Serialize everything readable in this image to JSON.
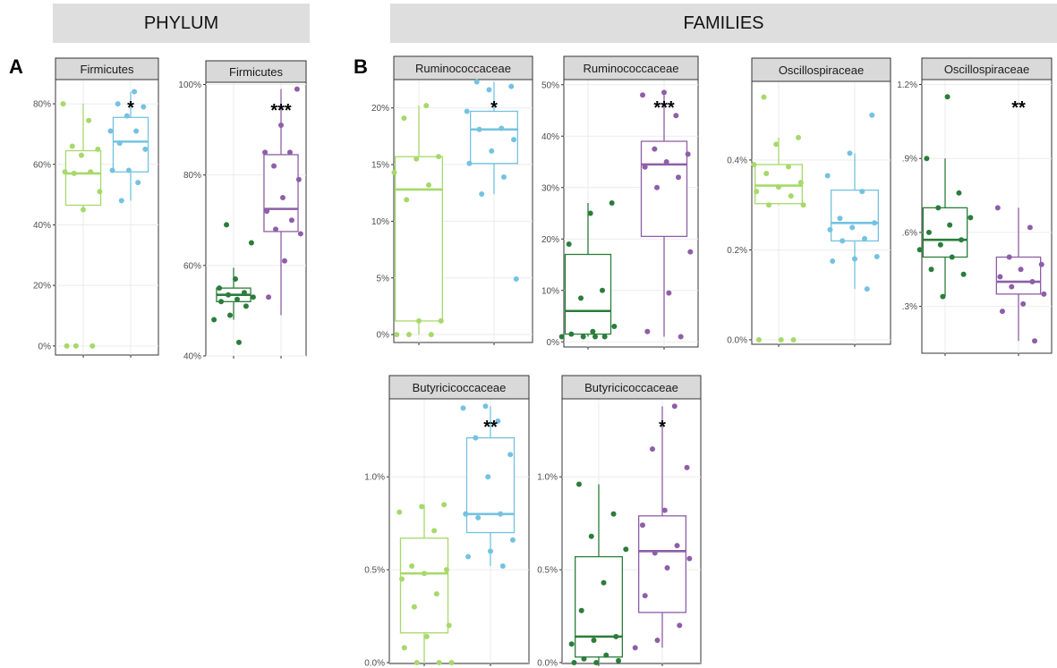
{
  "headers": {
    "phylum": "PHYLUM",
    "families": "FAMILIES"
  },
  "panel_letters": {
    "a": "A",
    "b": "B"
  },
  "colors": {
    "light_green": "#a6d96a",
    "light_blue": "#74c2e1",
    "dark_green": "#2a7d3a",
    "purple": "#8e5ea8",
    "strip_fill": "#d9d9d9"
  },
  "chart_data": [
    {
      "type": "box",
      "strip": "Firmicutes",
      "yticks": [
        "0%",
        "20%",
        "40%",
        "60%",
        "80%"
      ],
      "tickvals": [
        0,
        20,
        40,
        60,
        80
      ],
      "ylim": [
        -3,
        88
      ],
      "significance": "*",
      "groups": [
        {
          "color": "light_green",
          "box": [
            46.5,
            57,
            64.5
          ],
          "whisker": [
            45,
            80
          ],
          "points": [
            80,
            74.5,
            66,
            65,
            63,
            57.5,
            57.5,
            57,
            51,
            45,
            0,
            0,
            0
          ]
        },
        {
          "color": "light_blue",
          "box": [
            57.5,
            67.5,
            75.5
          ],
          "whisker": [
            48,
            84
          ],
          "points": [
            84,
            80,
            79,
            76,
            71,
            71,
            67,
            65,
            58,
            58,
            54,
            48
          ]
        }
      ]
    },
    {
      "type": "box",
      "strip": "Firmicutes",
      "yticks": [
        "40%",
        "60%",
        "80%",
        "100%"
      ],
      "tickvals": [
        40,
        60,
        80,
        100
      ],
      "ylim": [
        40,
        100.5
      ],
      "significance": "***",
      "groups": [
        {
          "color": "dark_green",
          "box": [
            52,
            53.5,
            55
          ],
          "whisker": [
            48,
            59.5
          ],
          "points": [
            69,
            65,
            57,
            55,
            54,
            53.5,
            53,
            52.5,
            52,
            51,
            49,
            48,
            43
          ]
        },
        {
          "color": "purple",
          "box": [
            67.5,
            72.5,
            84.5
          ],
          "whisker": [
            49,
            99
          ],
          "points": [
            99,
            91,
            85,
            85,
            82,
            79,
            75,
            72,
            70,
            68,
            67,
            61,
            53
          ]
        }
      ]
    },
    {
      "type": "box",
      "strip": "Ruminococcaceae",
      "yticks": [
        "0%",
        "5%",
        "10%",
        "15%",
        "20%"
      ],
      "tickvals": [
        0,
        5,
        10,
        15,
        20
      ],
      "ylim": [
        -0.7,
        22.5
      ],
      "significance": "*",
      "groups": [
        {
          "color": "light_green",
          "box": [
            1.2,
            12.8,
            15.7
          ],
          "whisker": [
            0,
            20.2
          ],
          "points": [
            20.2,
            19.1,
            15.7,
            15.5,
            14.3,
            13.2,
            11.9,
            1.2,
            1.2,
            0,
            0,
            0
          ]
        },
        {
          "color": "light_blue",
          "box": [
            15.1,
            18.1,
            19.7
          ],
          "whisker": [
            12.4,
            22.3
          ],
          "points": [
            22.3,
            21.9,
            21.6,
            19.7,
            18.2,
            18.1,
            17.2,
            16.2,
            15.1,
            13.9,
            12.4,
            4.9
          ]
        }
      ]
    },
    {
      "type": "box",
      "strip": "Ruminococcaceae",
      "yticks": [
        "0%",
        "10%",
        "20%",
        "30%",
        "40%",
        "50%"
      ],
      "tickvals": [
        0,
        10,
        20,
        30,
        40,
        50
      ],
      "ylim": [
        -1,
        51
      ],
      "significance": "***",
      "groups": [
        {
          "color": "dark_green",
          "box": [
            1.5,
            6,
            17
          ],
          "whisker": [
            1,
            27
          ],
          "points": [
            27,
            25,
            19,
            10,
            8.5,
            3,
            2,
            1.5,
            1,
            1,
            1,
            1
          ]
        },
        {
          "color": "purple",
          "box": [
            20.5,
            34.5,
            39
          ],
          "whisker": [
            1,
            48
          ],
          "points": [
            48.5,
            48,
            44,
            37.5,
            36.5,
            35,
            34,
            32,
            30,
            17.5,
            9.5,
            2,
            1
          ]
        }
      ]
    },
    {
      "type": "box",
      "strip": "Oscillospiraceae",
      "yticks": [
        "0.0%",
        "0.2%",
        "0.4%"
      ],
      "tickvals": [
        0,
        0.2,
        0.4
      ],
      "ylim": [
        -0.01,
        0.575
      ],
      "significance": "",
      "groups": [
        {
          "color": "light_green",
          "box": [
            0.303,
            0.343,
            0.39
          ],
          "whisker": [
            0.3,
            0.45
          ],
          "points": [
            0.54,
            0.45,
            0.435,
            0.39,
            0.385,
            0.37,
            0.35,
            0.34,
            0.33,
            0.32,
            0.3,
            0.3,
            0,
            0,
            0
          ]
        },
        {
          "color": "light_blue",
          "box": [
            0.22,
            0.26,
            0.333
          ],
          "whisker": [
            0.113,
            0.415
          ],
          "points": [
            0.5,
            0.415,
            0.365,
            0.33,
            0.27,
            0.26,
            0.25,
            0.245,
            0.225,
            0.22,
            0.185,
            0.18,
            0.175,
            0.113
          ]
        }
      ]
    },
    {
      "type": "box",
      "strip": "Oscillospiraceae",
      "yticks": [
        ".3%",
        ".6%",
        ".9%",
        "1.2%"
      ],
      "tickvals": [
        0.3,
        0.6,
        0.9,
        1.2
      ],
      "ylim": [
        0.11,
        1.22
      ],
      "significance": "**",
      "groups": [
        {
          "color": "dark_green",
          "box": [
            0.5,
            0.57,
            0.7
          ],
          "whisker": [
            0.34,
            0.9
          ],
          "points": [
            1.15,
            0.9,
            0.76,
            0.7,
            0.66,
            0.63,
            0.6,
            0.57,
            0.55,
            0.53,
            0.5,
            0.45,
            0.43,
            0.34
          ]
        },
        {
          "color": "purple",
          "box": [
            0.35,
            0.4,
            0.5
          ],
          "whisker": [
            0.16,
            0.7
          ],
          "points": [
            0.7,
            0.62,
            0.5,
            0.47,
            0.45,
            0.42,
            0.4,
            0.38,
            0.35,
            0.31,
            0.28,
            0.16
          ]
        }
      ]
    },
    {
      "type": "box",
      "strip": "Butyricicoccaceae",
      "yticks": [
        "0.0%",
        "0.5%",
        "1.0%"
      ],
      "tickvals": [
        0,
        0.5,
        1
      ],
      "ylim": [
        -0.005,
        1.42
      ],
      "significance": "**",
      "groups": [
        {
          "color": "light_green",
          "box": [
            0.16,
            0.48,
            0.67
          ],
          "whisker": [
            0,
            0.85
          ],
          "points": [
            0.85,
            0.84,
            0.81,
            0.71,
            0.52,
            0.5,
            0.48,
            0.45,
            0.37,
            0.3,
            0.2,
            0.14,
            0.08,
            0,
            0,
            0
          ]
        },
        {
          "color": "light_blue",
          "box": [
            0.7,
            0.8,
            1.21
          ],
          "whisker": [
            0.52,
            1.38
          ],
          "points": [
            1.38,
            1.37,
            1.3,
            1.21,
            1.12,
            1,
            0.8,
            0.8,
            0.78,
            0.66,
            0.6,
            0.57,
            0.52
          ]
        }
      ]
    },
    {
      "type": "box",
      "strip": "Butyricicoccaceae",
      "yticks": [
        "0.0%",
        "0.5%",
        "1.0%"
      ],
      "tickvals": [
        0,
        0.5,
        1
      ],
      "ylim": [
        -0.005,
        1.42
      ],
      "significance": "*",
      "groups": [
        {
          "color": "dark_green",
          "box": [
            0.03,
            0.14,
            0.57
          ],
          "whisker": [
            0,
            0.96
          ],
          "points": [
            0.96,
            0.8,
            0.68,
            0.61,
            0.43,
            0.28,
            0.14,
            0.12,
            0.1,
            0.04,
            0.02,
            0.01,
            0,
            0
          ]
        },
        {
          "color": "purple",
          "box": [
            0.27,
            0.6,
            0.79
          ],
          "whisker": [
            0.08,
            1.38
          ],
          "points": [
            1.38,
            1.15,
            1.05,
            0.82,
            0.74,
            0.63,
            0.59,
            0.56,
            0.51,
            0.36,
            0.2,
            0.12,
            0.08
          ]
        }
      ]
    }
  ]
}
